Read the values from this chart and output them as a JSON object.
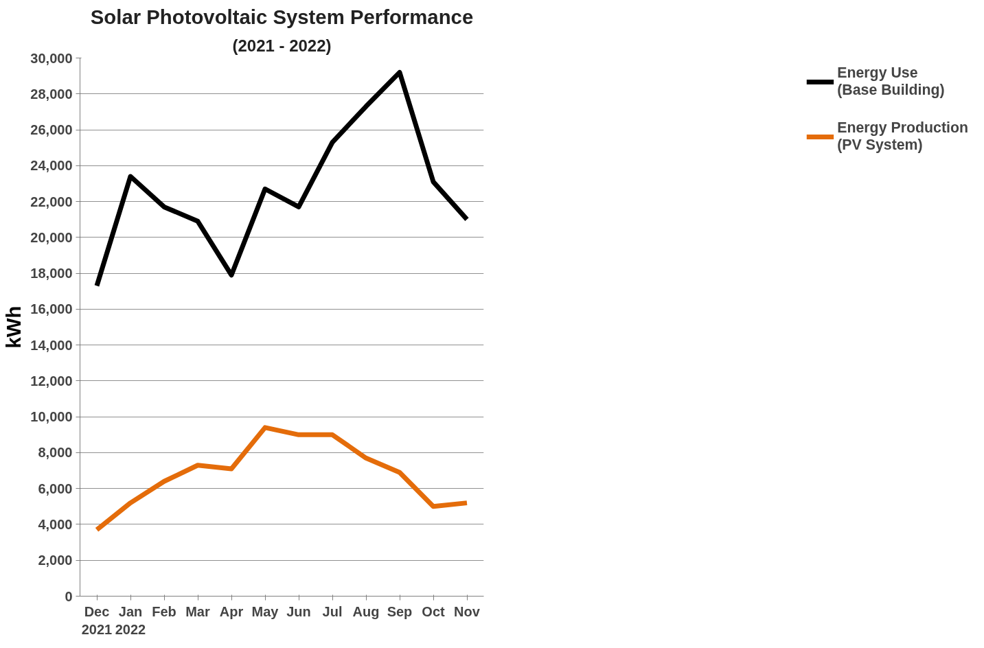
{
  "chart_data": {
    "type": "line",
    "title": "Solar Photovoltaic System Performance",
    "subtitle": "(2021 - 2022)",
    "ylabel": "kWh",
    "categories": [
      "Dec\n2021",
      "Jan\n2022",
      "Feb",
      "Mar",
      "Apr",
      "May",
      "Jun",
      "Jul",
      "Aug",
      "Sep",
      "Oct",
      "Nov"
    ],
    "series": [
      {
        "name": "Energy Use\n(Base Building)",
        "color": "#000000",
        "values": [
          17300,
          23400,
          21700,
          20900,
          17900,
          22700,
          21700,
          25300,
          27300,
          29200,
          23100,
          21000
        ]
      },
      {
        "name": "Energy Production\n(PV System)",
        "color": "#e46c0a",
        "values": [
          3700,
          5200,
          6400,
          7300,
          7100,
          9400,
          9000,
          9000,
          7700,
          6900,
          5000,
          5200
        ]
      }
    ],
    "ylim": [
      0,
      30000
    ],
    "yticks": [
      {
        "value": 0,
        "label": "0"
      },
      {
        "value": 2000,
        "label": "2,000"
      },
      {
        "value": 4000,
        "label": "4,000"
      },
      {
        "value": 6000,
        "label": "6,000"
      },
      {
        "value": 8000,
        "label": "8,000"
      },
      {
        "value": 10000,
        "label": "10,000"
      },
      {
        "value": 12000,
        "label": "12,000"
      },
      {
        "value": 14000,
        "label": "14,000"
      },
      {
        "value": 16000,
        "label": "16,000"
      },
      {
        "value": 18000,
        "label": "18,000"
      },
      {
        "value": 20000,
        "label": "20,000"
      },
      {
        "value": 22000,
        "label": "22,000"
      },
      {
        "value": 24000,
        "label": "24,000"
      },
      {
        "value": 26000,
        "label": "26,000"
      },
      {
        "value": 28000,
        "label": "28,000"
      },
      {
        "value": 30000,
        "label": "30,000"
      }
    ],
    "grid": "y",
    "legend": "right",
    "marker": "none",
    "line_style": "solid"
  }
}
